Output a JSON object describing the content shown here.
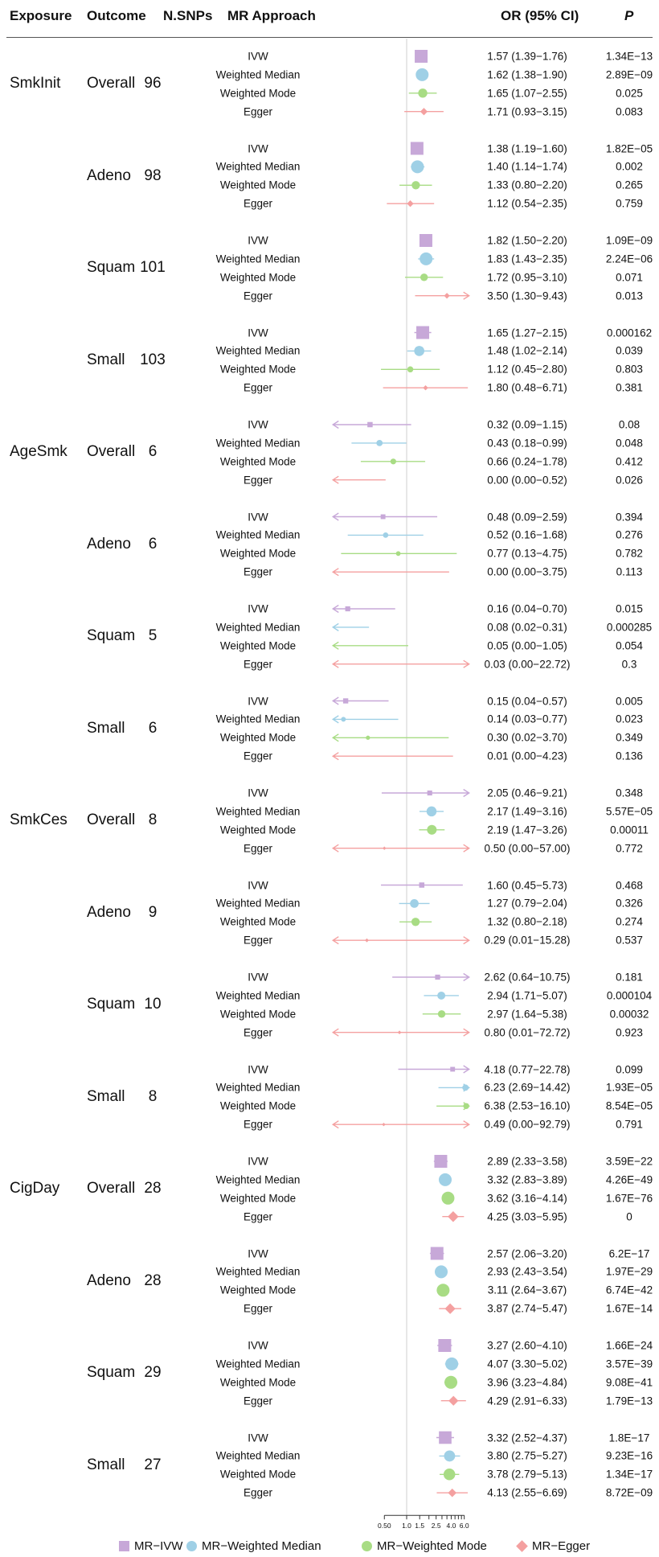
{
  "header": {
    "exposure": "Exposure",
    "outcome": "Outcome",
    "nsnps": "N.SNPs",
    "approach": "MR Approach",
    "or": "OR (95% CI)",
    "p": "P"
  },
  "legend": [
    {
      "label": "MR−IVW",
      "color": "#c7a8d8",
      "shape": "square"
    },
    {
      "label": "MR−Weighted Median",
      "color": "#9fd0e6",
      "shape": "circle"
    },
    {
      "label": "MR−Weighted Mode",
      "color": "#a8dc84",
      "shape": "circle"
    },
    {
      "label": "MR−Egger",
      "color": "#f4a0a0",
      "shape": "diamond"
    }
  ],
  "chart_data": {
    "type": "forest",
    "x_scale": "log",
    "reference_line": 1,
    "x_ticks": [
      "0.50",
      "1.0",
      "1.5",
      "2.5",
      "4.0",
      "6.0"
    ],
    "x_tick_values": [
      0.5,
      1.0,
      1.5,
      2.5,
      4.0,
      6.0
    ],
    "x_minor_ticks": [
      2.0,
      3.0,
      3.5,
      4.5,
      5.0,
      5.5
    ],
    "groups": [
      {
        "exposure": "SmkInit",
        "outcome": "Overall",
        "nsnps": "96",
        "rows": [
          {
            "method": "IVW",
            "or": 1.57,
            "lo": 1.39,
            "hi": 1.76,
            "ci": "1.57 (1.39−1.76)",
            "p": "1.34E−13"
          },
          {
            "method": "Weighted Median",
            "or": 1.62,
            "lo": 1.38,
            "hi": 1.9,
            "ci": "1.62 (1.38−1.90)",
            "p": "2.89E−09"
          },
          {
            "method": "Weighted Mode",
            "or": 1.65,
            "lo": 1.07,
            "hi": 2.55,
            "ci": "1.65 (1.07−2.55)",
            "p": "0.025"
          },
          {
            "method": "Egger",
            "or": 1.71,
            "lo": 0.93,
            "hi": 3.15,
            "ci": "1.71 (0.93−3.15)",
            "p": "0.083"
          }
        ]
      },
      {
        "exposure": "",
        "outcome": "Adeno",
        "nsnps": "98",
        "rows": [
          {
            "method": "IVW",
            "or": 1.38,
            "lo": 1.19,
            "hi": 1.6,
            "ci": "1.38 (1.19−1.60)",
            "p": "1.82E−05"
          },
          {
            "method": "Weighted Median",
            "or": 1.4,
            "lo": 1.14,
            "hi": 1.74,
            "ci": "1.40 (1.14−1.74)",
            "p": "0.002"
          },
          {
            "method": "Weighted Mode",
            "or": 1.33,
            "lo": 0.8,
            "hi": 2.2,
            "ci": "1.33 (0.80−2.20)",
            "p": "0.265"
          },
          {
            "method": "Egger",
            "or": 1.12,
            "lo": 0.54,
            "hi": 2.35,
            "ci": "1.12 (0.54−2.35)",
            "p": "0.759"
          }
        ]
      },
      {
        "exposure": "",
        "outcome": "Squam",
        "nsnps": "101",
        "rows": [
          {
            "method": "IVW",
            "or": 1.82,
            "lo": 1.5,
            "hi": 2.2,
            "ci": "1.82 (1.50−2.20)",
            "p": "1.09E−09"
          },
          {
            "method": "Weighted Median",
            "or": 1.83,
            "lo": 1.43,
            "hi": 2.35,
            "ci": "1.83 (1.43−2.35)",
            "p": "2.24E−06"
          },
          {
            "method": "Weighted Mode",
            "or": 1.72,
            "lo": 0.95,
            "hi": 3.1,
            "ci": "1.72 (0.95−3.10)",
            "p": "0.071"
          },
          {
            "method": "Egger",
            "or": 3.5,
            "lo": 1.3,
            "hi": 9.43,
            "ci": "3.50 (1.30−9.43)",
            "p": "0.013"
          }
        ]
      },
      {
        "exposure": "",
        "outcome": "Small",
        "nsnps": "103",
        "rows": [
          {
            "method": "IVW",
            "or": 1.65,
            "lo": 1.27,
            "hi": 2.15,
            "ci": "1.65 (1.27−2.15)",
            "p": "0.000162"
          },
          {
            "method": "Weighted Median",
            "or": 1.48,
            "lo": 1.02,
            "hi": 2.14,
            "ci": "1.48 (1.02−2.14)",
            "p": "0.039"
          },
          {
            "method": "Weighted Mode",
            "or": 1.12,
            "lo": 0.45,
            "hi": 2.8,
            "ci": "1.12 (0.45−2.80)",
            "p": "0.803"
          },
          {
            "method": "Egger",
            "or": 1.8,
            "lo": 0.48,
            "hi": 6.71,
            "ci": "1.80 (0.48−6.71)",
            "p": "0.381"
          }
        ]
      },
      {
        "exposure": "AgeSmk",
        "outcome": "Overall",
        "nsnps": "6",
        "rows": [
          {
            "method": "IVW",
            "or": 0.32,
            "lo": 0.09,
            "hi": 1.15,
            "ci": "0.32 (0.09−1.15)",
            "p": "0.08"
          },
          {
            "method": "Weighted Median",
            "or": 0.43,
            "lo": 0.18,
            "hi": 0.99,
            "ci": "0.43 (0.18−0.99)",
            "p": "0.048"
          },
          {
            "method": "Weighted Mode",
            "or": 0.66,
            "lo": 0.24,
            "hi": 1.78,
            "ci": "0.66 (0.24−1.78)",
            "p": "0.412"
          },
          {
            "method": "Egger",
            "or": 0.0,
            "lo": 0.0,
            "hi": 0.52,
            "ci": "0.00 (0.00−0.52)",
            "p": "0.026"
          }
        ]
      },
      {
        "exposure": "",
        "outcome": "Adeno",
        "nsnps": "6",
        "rows": [
          {
            "method": "IVW",
            "or": 0.48,
            "lo": 0.09,
            "hi": 2.59,
            "ci": "0.48 (0.09−2.59)",
            "p": "0.394"
          },
          {
            "method": "Weighted Median",
            "or": 0.52,
            "lo": 0.16,
            "hi": 1.68,
            "ci": "0.52 (0.16−1.68)",
            "p": "0.276"
          },
          {
            "method": "Weighted Mode",
            "or": 0.77,
            "lo": 0.13,
            "hi": 4.75,
            "ci": "0.77 (0.13−4.75)",
            "p": "0.782"
          },
          {
            "method": "Egger",
            "or": 0.0,
            "lo": 0.0,
            "hi": 3.75,
            "ci": "0.00 (0.00−3.75)",
            "p": "0.113"
          }
        ]
      },
      {
        "exposure": "",
        "outcome": "Squam",
        "nsnps": "5",
        "rows": [
          {
            "method": "IVW",
            "or": 0.16,
            "lo": 0.04,
            "hi": 0.7,
            "ci": "0.16 (0.04−0.70)",
            "p": "0.015"
          },
          {
            "method": "Weighted Median",
            "or": 0.08,
            "lo": 0.02,
            "hi": 0.31,
            "ci": "0.08 (0.02−0.31)",
            "p": "0.000285"
          },
          {
            "method": "Weighted Mode",
            "or": 0.05,
            "lo": 0.0,
            "hi": 1.05,
            "ci": "0.05 (0.00−1.05)",
            "p": "0.054"
          },
          {
            "method": "Egger",
            "or": 0.03,
            "lo": 0.0,
            "hi": 22.72,
            "ci": "0.03 (0.00−22.72)",
            "p": "0.3"
          }
        ]
      },
      {
        "exposure": "",
        "outcome": "Small",
        "nsnps": "6",
        "rows": [
          {
            "method": "IVW",
            "or": 0.15,
            "lo": 0.04,
            "hi": 0.57,
            "ci": "0.15 (0.04−0.57)",
            "p": "0.005"
          },
          {
            "method": "Weighted Median",
            "or": 0.14,
            "lo": 0.03,
            "hi": 0.77,
            "ci": "0.14 (0.03−0.77)",
            "p": "0.023"
          },
          {
            "method": "Weighted Mode",
            "or": 0.3,
            "lo": 0.02,
            "hi": 3.7,
            "ci": "0.30 (0.02−3.70)",
            "p": "0.349"
          },
          {
            "method": "Egger",
            "or": 0.01,
            "lo": 0.0,
            "hi": 4.23,
            "ci": "0.01 (0.00−4.23)",
            "p": "0.136"
          }
        ]
      },
      {
        "exposure": "SmkCes",
        "outcome": "Overall",
        "nsnps": "8",
        "rows": [
          {
            "method": "IVW",
            "or": 2.05,
            "lo": 0.46,
            "hi": 9.21,
            "ci": "2.05 (0.46−9.21)",
            "p": "0.348"
          },
          {
            "method": "Weighted Median",
            "or": 2.17,
            "lo": 1.49,
            "hi": 3.16,
            "ci": "2.17 (1.49−3.16)",
            "p": "5.57E−05"
          },
          {
            "method": "Weighted Mode",
            "or": 2.19,
            "lo": 1.47,
            "hi": 3.26,
            "ci": "2.19 (1.47−3.26)",
            "p": "0.00011"
          },
          {
            "method": "Egger",
            "or": 0.5,
            "lo": 0.0,
            "hi": 57.0,
            "ci": "0.50 (0.00−57.00)",
            "p": "0.772"
          }
        ]
      },
      {
        "exposure": "",
        "outcome": "Adeno",
        "nsnps": "9",
        "rows": [
          {
            "method": "IVW",
            "or": 1.6,
            "lo": 0.45,
            "hi": 5.73,
            "ci": "1.60 (0.45−5.73)",
            "p": "0.468"
          },
          {
            "method": "Weighted Median",
            "or": 1.27,
            "lo": 0.79,
            "hi": 2.04,
            "ci": "1.27 (0.79−2.04)",
            "p": "0.326"
          },
          {
            "method": "Weighted Mode",
            "or": 1.32,
            "lo": 0.8,
            "hi": 2.18,
            "ci": "1.32 (0.80−2.18)",
            "p": "0.274"
          },
          {
            "method": "Egger",
            "or": 0.29,
            "lo": 0.01,
            "hi": 15.28,
            "ci": "0.29 (0.01−15.28)",
            "p": "0.537"
          }
        ]
      },
      {
        "exposure": "",
        "outcome": "Squam",
        "nsnps": "10",
        "rows": [
          {
            "method": "IVW",
            "or": 2.62,
            "lo": 0.64,
            "hi": 10.75,
            "ci": "2.62 (0.64−10.75)",
            "p": "0.181"
          },
          {
            "method": "Weighted Median",
            "or": 2.94,
            "lo": 1.71,
            "hi": 5.07,
            "ci": "2.94 (1.71−5.07)",
            "p": "0.000104"
          },
          {
            "method": "Weighted Mode",
            "or": 2.97,
            "lo": 1.64,
            "hi": 5.38,
            "ci": "2.97 (1.64−5.38)",
            "p": "0.00032"
          },
          {
            "method": "Egger",
            "or": 0.8,
            "lo": 0.01,
            "hi": 72.72,
            "ci": "0.80 (0.01−72.72)",
            "p": "0.923"
          }
        ]
      },
      {
        "exposure": "",
        "outcome": "Small",
        "nsnps": "8",
        "rows": [
          {
            "method": "IVW",
            "or": 4.18,
            "lo": 0.77,
            "hi": 22.78,
            "ci": "4.18 (0.77−22.78)",
            "p": "0.099"
          },
          {
            "method": "Weighted Median",
            "or": 6.23,
            "lo": 2.69,
            "hi": 14.42,
            "ci": "6.23 (2.69−14.42)",
            "p": "1.93E−05"
          },
          {
            "method": "Weighted Mode",
            "or": 6.38,
            "lo": 2.53,
            "hi": 16.1,
            "ci": "6.38 (2.53−16.10)",
            "p": "8.54E−05"
          },
          {
            "method": "Egger",
            "or": 0.49,
            "lo": 0.0,
            "hi": 92.79,
            "ci": "0.49 (0.00−92.79)",
            "p": "0.791"
          }
        ]
      },
      {
        "exposure": "CigDay",
        "outcome": "Overall",
        "nsnps": "28",
        "rows": [
          {
            "method": "IVW",
            "or": 2.89,
            "lo": 2.33,
            "hi": 3.58,
            "ci": "2.89 (2.33−3.58)",
            "p": "3.59E−22"
          },
          {
            "method": "Weighted Median",
            "or": 3.32,
            "lo": 2.83,
            "hi": 3.89,
            "ci": "3.32 (2.83−3.89)",
            "p": "4.26E−49"
          },
          {
            "method": "Weighted Mode",
            "or": 3.62,
            "lo": 3.16,
            "hi": 4.14,
            "ci": "3.62 (3.16−4.14)",
            "p": "1.67E−76"
          },
          {
            "method": "Egger",
            "or": 4.25,
            "lo": 3.03,
            "hi": 5.95,
            "ci": "4.25 (3.03−5.95)",
            "p": "0"
          }
        ]
      },
      {
        "exposure": "",
        "outcome": "Adeno",
        "nsnps": "28",
        "rows": [
          {
            "method": "IVW",
            "or": 2.57,
            "lo": 2.06,
            "hi": 3.2,
            "ci": "2.57 (2.06−3.20)",
            "p": "6.2E−17"
          },
          {
            "method": "Weighted Median",
            "or": 2.93,
            "lo": 2.43,
            "hi": 3.54,
            "ci": "2.93 (2.43−3.54)",
            "p": "1.97E−29"
          },
          {
            "method": "Weighted Mode",
            "or": 3.11,
            "lo": 2.64,
            "hi": 3.67,
            "ci": "3.11 (2.64−3.67)",
            "p": "6.74E−42"
          },
          {
            "method": "Egger",
            "or": 3.87,
            "lo": 2.74,
            "hi": 5.47,
            "ci": "3.87 (2.74−5.47)",
            "p": "1.67E−14"
          }
        ]
      },
      {
        "exposure": "",
        "outcome": "Squam",
        "nsnps": "29",
        "rows": [
          {
            "method": "IVW",
            "or": 3.27,
            "lo": 2.6,
            "hi": 4.1,
            "ci": "3.27 (2.60−4.10)",
            "p": "1.66E−24"
          },
          {
            "method": "Weighted Median",
            "or": 4.07,
            "lo": 3.3,
            "hi": 5.02,
            "ci": "4.07 (3.30−5.02)",
            "p": "3.57E−39"
          },
          {
            "method": "Weighted Mode",
            "or": 3.96,
            "lo": 3.23,
            "hi": 4.84,
            "ci": "3.96 (3.23−4.84)",
            "p": "9.08E−41"
          },
          {
            "method": "Egger",
            "or": 4.29,
            "lo": 2.91,
            "hi": 6.33,
            "ci": "4.29 (2.91−6.33)",
            "p": "1.79E−13"
          }
        ]
      },
      {
        "exposure": "",
        "outcome": "Small",
        "nsnps": "27",
        "rows": [
          {
            "method": "IVW",
            "or": 3.32,
            "lo": 2.52,
            "hi": 4.37,
            "ci": "3.32 (2.52−4.37)",
            "p": "1.8E−17"
          },
          {
            "method": "Weighted Median",
            "or": 3.8,
            "lo": 2.75,
            "hi": 5.27,
            "ci": "3.80 (2.75−5.27)",
            "p": "9.23E−16"
          },
          {
            "method": "Weighted Mode",
            "or": 3.78,
            "lo": 2.79,
            "hi": 5.13,
            "ci": "3.78 (2.79−5.13)",
            "p": "1.34E−17"
          },
          {
            "method": "Egger",
            "or": 4.13,
            "lo": 2.55,
            "hi": 6.69,
            "ci": "4.13 (2.55−6.69)",
            "p": "8.72E−09"
          }
        ]
      }
    ]
  }
}
